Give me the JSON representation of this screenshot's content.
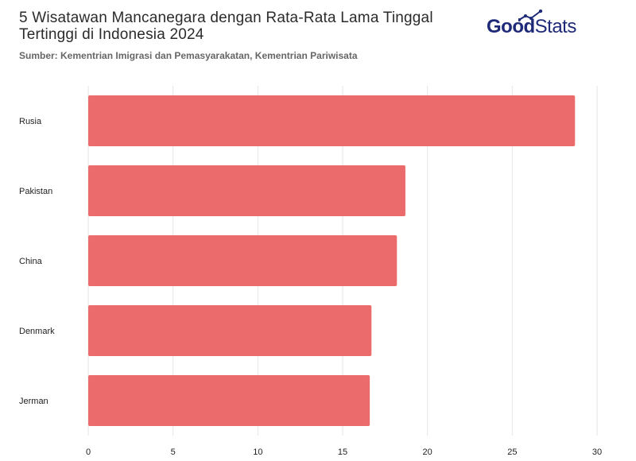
{
  "header": {
    "title": "5 Wisatawan Mancanegara dengan Rata-Rata Lama Tinggal Tertinggi di Indonesia 2024",
    "source": "Sumber: Kementrian Imigrasi dan Pemasyarakatan, Kementrian Pariwisata"
  },
  "logo": {
    "part1": "Good",
    "part2": "Stats",
    "icon": "trend-line-icon"
  },
  "colors": {
    "bar": "#eb6b6c",
    "logo": "#1e2a78",
    "grid": "#e6e6e6"
  },
  "chart_data": {
    "type": "bar",
    "orientation": "horizontal",
    "categories": [
      "Rusia",
      "Pakistan",
      "China",
      "Denmark",
      "Jerman"
    ],
    "values": [
      28.7,
      18.7,
      18.2,
      16.7,
      16.6
    ],
    "xlim": [
      0,
      30
    ],
    "xticks": [
      0,
      5,
      10,
      15,
      20,
      25,
      30
    ],
    "grid": true,
    "legend": "none"
  }
}
